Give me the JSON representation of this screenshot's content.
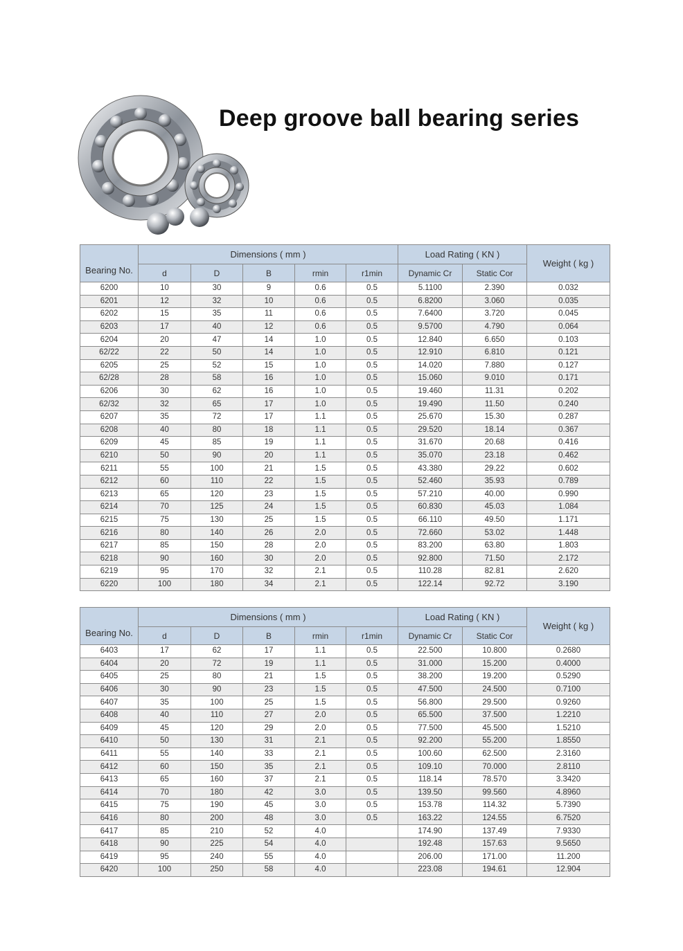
{
  "title": "Deep groove ball bearing series",
  "colors": {
    "header_bg": "#c6d5e6",
    "alt_row_bg": "#ececec",
    "border": "#8a8a8a"
  },
  "image": {
    "subject": "ball bearings with loose steel balls"
  },
  "headers": {
    "bearing_no": "Bearing No.",
    "dimensions": "Dimensions ( mm )",
    "load_rating": "Load Rating ( KN )",
    "weight": "Weight ( kg )",
    "columns": [
      "d",
      "D",
      "B",
      "rmin",
      "r1min",
      "Dynamic Cr",
      "Static Cor"
    ]
  },
  "tables": [
    {
      "rows": [
        [
          "6200",
          "10",
          "30",
          "9",
          "0.6",
          "0.5",
          "5.1100",
          "2.390",
          "0.032"
        ],
        [
          "6201",
          "12",
          "32",
          "10",
          "0.6",
          "0.5",
          "6.8200",
          "3.060",
          "0.035"
        ],
        [
          "6202",
          "15",
          "35",
          "11",
          "0.6",
          "0.5",
          "7.6400",
          "3.720",
          "0.045"
        ],
        [
          "6203",
          "17",
          "40",
          "12",
          "0.6",
          "0.5",
          "9.5700",
          "4.790",
          "0.064"
        ],
        [
          "6204",
          "20",
          "47",
          "14",
          "1.0",
          "0.5",
          "12.840",
          "6.650",
          "0.103"
        ],
        [
          "62/22",
          "22",
          "50",
          "14",
          "1.0",
          "0.5",
          "12.910",
          "6.810",
          "0.121"
        ],
        [
          "6205",
          "25",
          "52",
          "15",
          "1.0",
          "0.5",
          "14.020",
          "7.880",
          "0.127"
        ],
        [
          "62/28",
          "28",
          "58",
          "16",
          "1.0",
          "0.5",
          "15.060",
          "9.010",
          "0.171"
        ],
        [
          "6206",
          "30",
          "62",
          "16",
          "1.0",
          "0.5",
          "19.460",
          "11.31",
          "0.202"
        ],
        [
          "62/32",
          "32",
          "65",
          "17",
          "1.0",
          "0.5",
          "19.490",
          "11.50",
          "0.240"
        ],
        [
          "6207",
          "35",
          "72",
          "17",
          "1.1",
          "0.5",
          "25.670",
          "15.30",
          "0.287"
        ],
        [
          "6208",
          "40",
          "80",
          "18",
          "1.1",
          "0.5",
          "29.520",
          "18.14",
          "0.367"
        ],
        [
          "6209",
          "45",
          "85",
          "19",
          "1.1",
          "0.5",
          "31.670",
          "20.68",
          "0.416"
        ],
        [
          "6210",
          "50",
          "90",
          "20",
          "1.1",
          "0.5",
          "35.070",
          "23.18",
          "0.462"
        ],
        [
          "6211",
          "55",
          "100",
          "21",
          "1.5",
          "0.5",
          "43.380",
          "29.22",
          "0.602"
        ],
        [
          "6212",
          "60",
          "110",
          "22",
          "1.5",
          "0.5",
          "52.460",
          "35.93",
          "0.789"
        ],
        [
          "6213",
          "65",
          "120",
          "23",
          "1.5",
          "0.5",
          "57.210",
          "40.00",
          "0.990"
        ],
        [
          "6214",
          "70",
          "125",
          "24",
          "1.5",
          "0.5",
          "60.830",
          "45.03",
          "1.084"
        ],
        [
          "6215",
          "75",
          "130",
          "25",
          "1.5",
          "0.5",
          "66.110",
          "49.50",
          "1.171"
        ],
        [
          "6216",
          "80",
          "140",
          "26",
          "2.0",
          "0.5",
          "72.660",
          "53.02",
          "1.448"
        ],
        [
          "6217",
          "85",
          "150",
          "28",
          "2.0",
          "0.5",
          "83.200",
          "63.80",
          "1.803"
        ],
        [
          "6218",
          "90",
          "160",
          "30",
          "2.0",
          "0.5",
          "92.800",
          "71.50",
          "2.172"
        ],
        [
          "6219",
          "95",
          "170",
          "32",
          "2.1",
          "0.5",
          "110.28",
          "82.81",
          "2.620"
        ],
        [
          "6220",
          "100",
          "180",
          "34",
          "2.1",
          "0.5",
          "122.14",
          "92.72",
          "3.190"
        ]
      ]
    },
    {
      "rows": [
        [
          "6403",
          "17",
          "62",
          "17",
          "1.1",
          "0.5",
          "22.500",
          "10.800",
          "0.2680"
        ],
        [
          "6404",
          "20",
          "72",
          "19",
          "1.1",
          "0.5",
          "31.000",
          "15.200",
          "0.4000"
        ],
        [
          "6405",
          "25",
          "80",
          "21",
          "1.5",
          "0.5",
          "38.200",
          "19.200",
          "0.5290"
        ],
        [
          "6406",
          "30",
          "90",
          "23",
          "1.5",
          "0.5",
          "47.500",
          "24.500",
          "0.7100"
        ],
        [
          "6407",
          "35",
          "100",
          "25",
          "1.5",
          "0.5",
          "56.800",
          "29.500",
          "0.9260"
        ],
        [
          "6408",
          "40",
          "110",
          "27",
          "2.0",
          "0.5",
          "65.500",
          "37.500",
          "1.2210"
        ],
        [
          "6409",
          "45",
          "120",
          "29",
          "2.0",
          "0.5",
          "77.500",
          "45.500",
          "1.5210"
        ],
        [
          "6410",
          "50",
          "130",
          "31",
          "2.1",
          "0.5",
          "92.200",
          "55.200",
          "1.8550"
        ],
        [
          "6411",
          "55",
          "140",
          "33",
          "2.1",
          "0.5",
          "100.60",
          "62.500",
          "2.3160"
        ],
        [
          "6412",
          "60",
          "150",
          "35",
          "2.1",
          "0.5",
          "109.10",
          "70.000",
          "2.8110"
        ],
        [
          "6413",
          "65",
          "160",
          "37",
          "2.1",
          "0.5",
          "118.14",
          "78.570",
          "3.3420"
        ],
        [
          "6414",
          "70",
          "180",
          "42",
          "3.0",
          "0.5",
          "139.50",
          "99.560",
          "4.8960"
        ],
        [
          "6415",
          "75",
          "190",
          "45",
          "3.0",
          "0.5",
          "153.78",
          "114.32",
          "5.7390"
        ],
        [
          "6416",
          "80",
          "200",
          "48",
          "3.0",
          "0.5",
          "163.22",
          "124.55",
          "6.7520"
        ],
        [
          "6417",
          "85",
          "210",
          "52",
          "4.0",
          "",
          "174.90",
          "137.49",
          "7.9330"
        ],
        [
          "6418",
          "90",
          "225",
          "54",
          "4.0",
          "",
          "192.48",
          "157.63",
          "9.5650"
        ],
        [
          "6419",
          "95",
          "240",
          "55",
          "4.0",
          "",
          "206.00",
          "171.00",
          "11.200"
        ],
        [
          "6420",
          "100",
          "250",
          "58",
          "4.0",
          "",
          "223.08",
          "194.61",
          "12.904"
        ]
      ]
    }
  ]
}
